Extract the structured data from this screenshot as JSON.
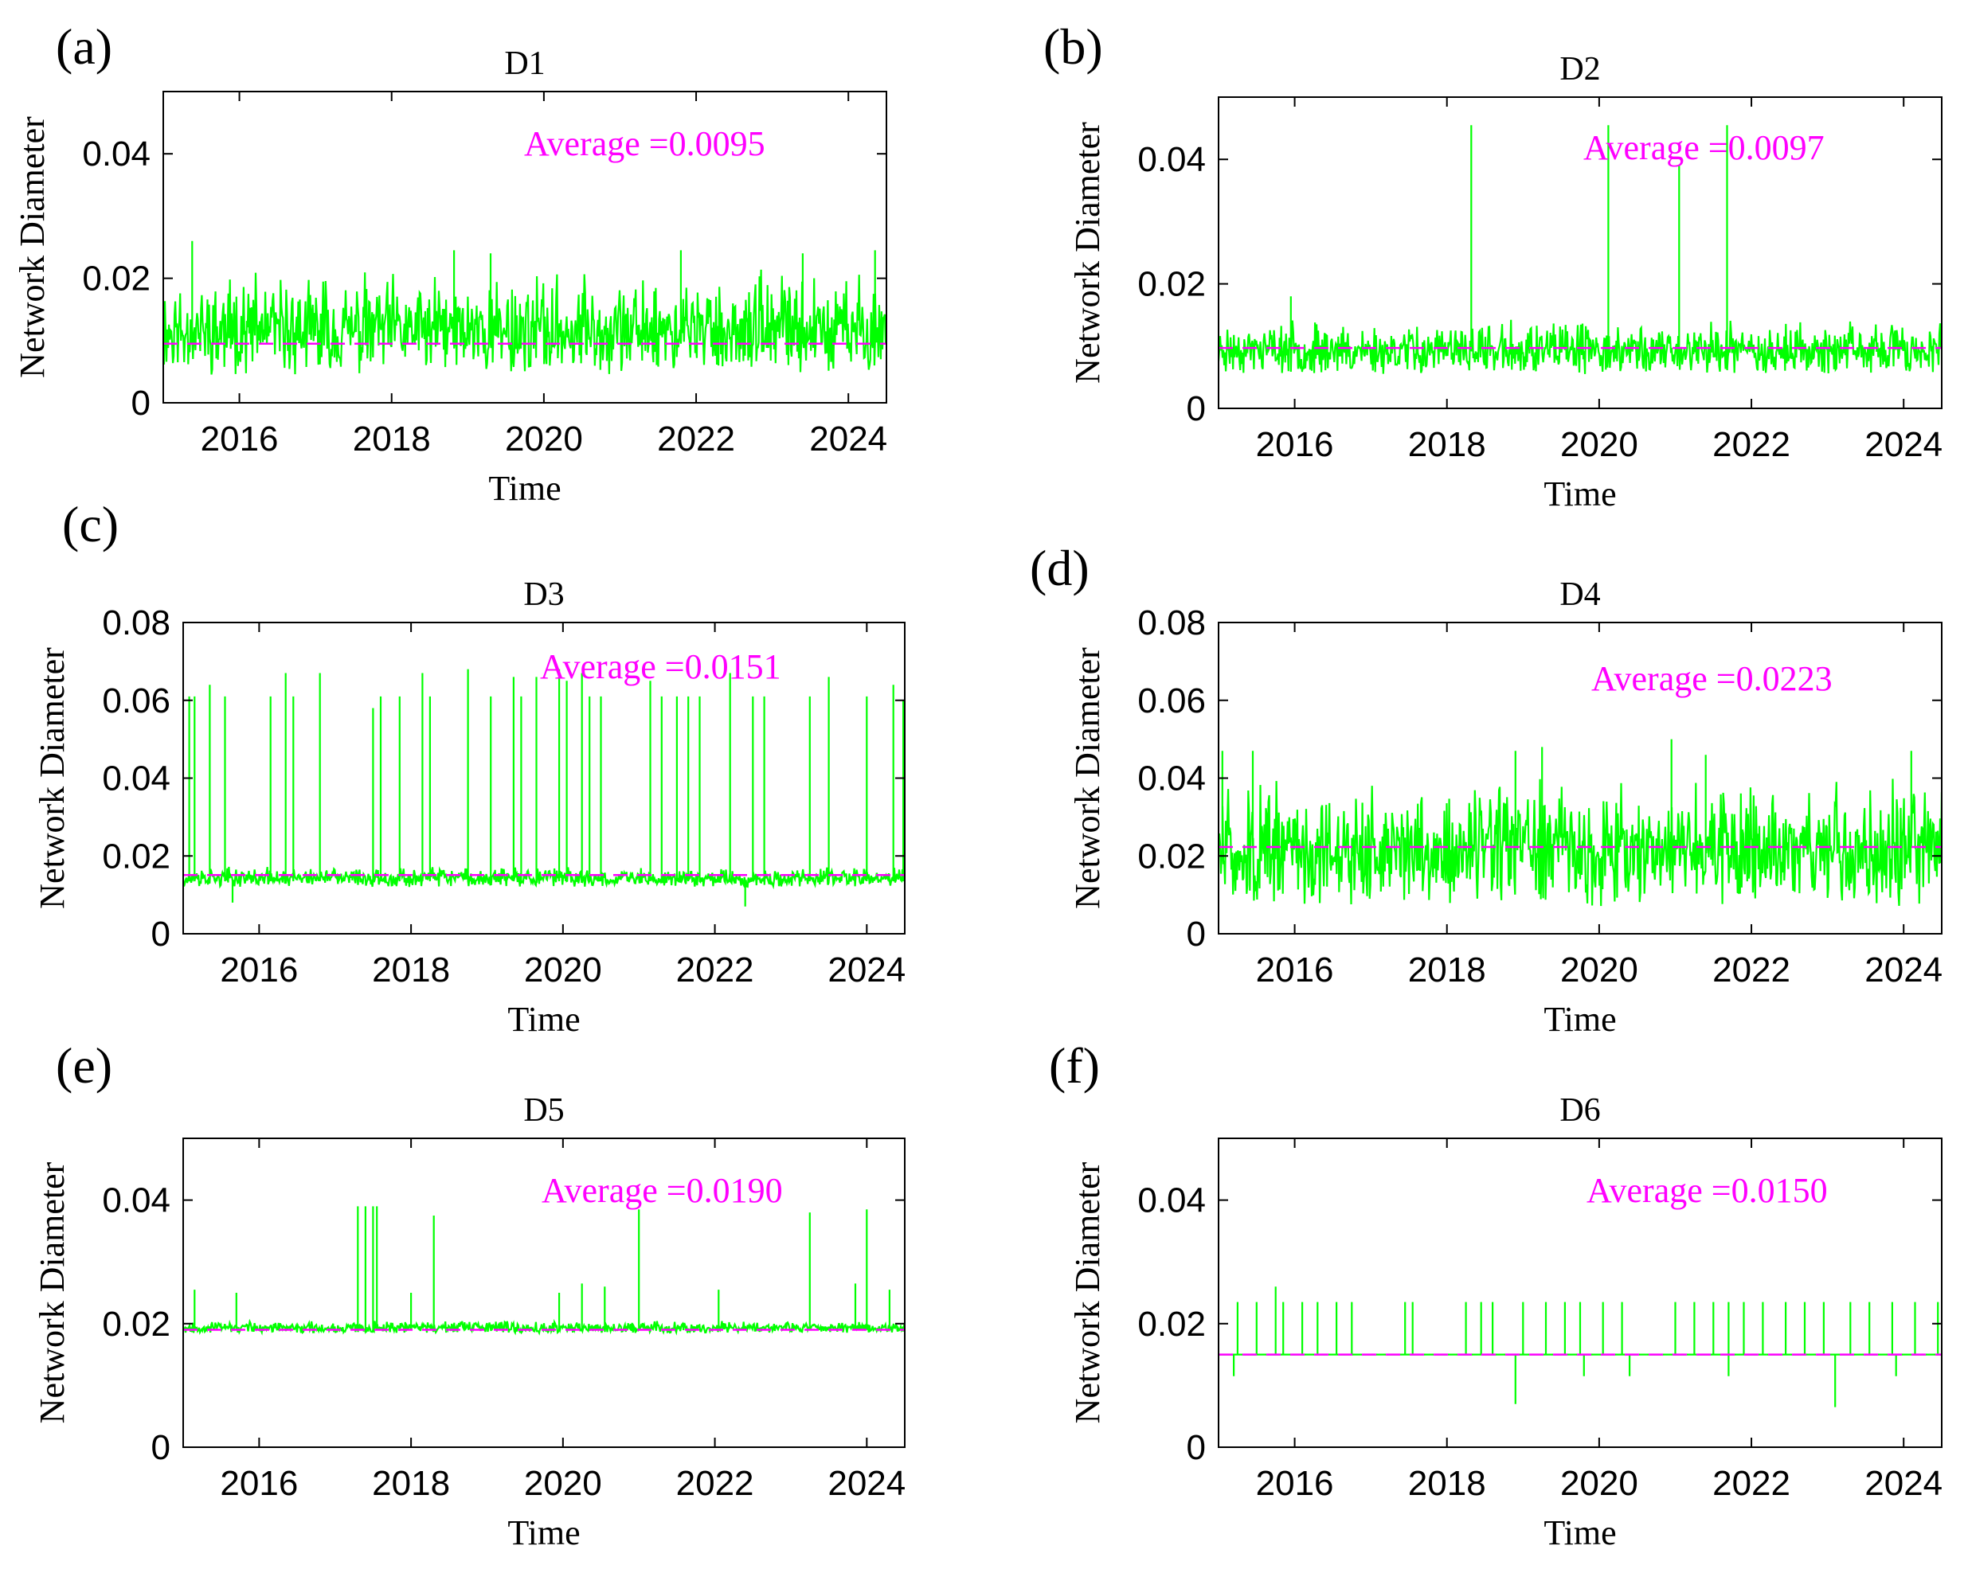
{
  "figure": {
    "series_color": "#00ff00",
    "average_color": "#ff00ff",
    "axis_color": "#000000"
  },
  "chart_data": [
    {
      "type": "line",
      "panel": "(a)",
      "title": "D1",
      "xlabel": "Time",
      "ylabel": "Network Diameter",
      "xlim": [
        2015.0,
        2024.5
      ],
      "ylim": [
        0,
        0.05
      ],
      "xticks": [
        2016,
        2018,
        2020,
        2022,
        2024
      ],
      "xtick_labels": [
        "2016",
        "2018",
        "2020",
        "2022",
        "2024"
      ],
      "yticks": [
        0,
        0.02,
        0.04
      ],
      "ytick_labels": [
        "0",
        "0.02",
        "0.04"
      ],
      "average": 0.0095,
      "average_label": "Average =0.0095",
      "noise": {
        "base": 0.0095,
        "lo": 0.0045,
        "hi": 0.0215,
        "seed": 11
      },
      "spikes": [
        [
          2015.38,
          0.026
        ],
        [
          2018.82,
          0.0245
        ],
        [
          2019.3,
          0.024
        ],
        [
          2021.8,
          0.0245
        ],
        [
          2023.4,
          0.024
        ],
        [
          2024.35,
          0.0245
        ]
      ]
    },
    {
      "type": "line",
      "panel": "(b)",
      "title": "D2",
      "xlabel": "Time",
      "ylabel": "Network Diameter",
      "xlim": [
        2015.0,
        2024.5
      ],
      "ylim": [
        0,
        0.05
      ],
      "xticks": [
        2016,
        2018,
        2020,
        2022,
        2024
      ],
      "xtick_labels": [
        "2016",
        "2018",
        "2020",
        "2022",
        "2024"
      ],
      "yticks": [
        0,
        0.02,
        0.04
      ],
      "ytick_labels": [
        "0",
        "0.02",
        "0.04"
      ],
      "average": 0.0097,
      "average_label": "Average =0.0097",
      "noise": {
        "base": 0.0097,
        "lo": 0.0055,
        "hi": 0.0145,
        "seed": 23
      },
      "spikes": [
        [
          2015.95,
          0.018
        ],
        [
          2018.32,
          0.0455
        ],
        [
          2020.12,
          0.0455
        ],
        [
          2021.05,
          0.039
        ],
        [
          2021.68,
          0.0455
        ]
      ]
    },
    {
      "type": "line",
      "panel": "(c)",
      "title": "D3",
      "xlabel": "Time",
      "ylabel": "Network Diameter",
      "xlim": [
        2015.0,
        2024.5
      ],
      "ylim": [
        0,
        0.08
      ],
      "xticks": [
        2016,
        2018,
        2020,
        2022,
        2024
      ],
      "xtick_labels": [
        "2016",
        "2018",
        "2020",
        "2022",
        "2024"
      ],
      "yticks": [
        0,
        0.02,
        0.04,
        0.06,
        0.08
      ],
      "ytick_labels": [
        "0",
        "0.02",
        "0.04",
        "0.06",
        "0.08"
      ],
      "average": 0.0151,
      "average_label": "Average =0.0151",
      "noise": {
        "base": 0.0135,
        "lo": 0.012,
        "hi": 0.0175,
        "seed": 37
      },
      "spikes": [
        [
          2015.08,
          0.061
        ],
        [
          2015.15,
          0.061
        ],
        [
          2015.35,
          0.064
        ],
        [
          2015.55,
          0.061
        ],
        [
          2016.15,
          0.061
        ],
        [
          2016.35,
          0.067
        ],
        [
          2016.45,
          0.061
        ],
        [
          2016.8,
          0.067
        ],
        [
          2017.5,
          0.058
        ],
        [
          2017.6,
          0.061
        ],
        [
          2017.85,
          0.061
        ],
        [
          2018.15,
          0.067
        ],
        [
          2018.25,
          0.061
        ],
        [
          2018.75,
          0.068
        ],
        [
          2019.05,
          0.061
        ],
        [
          2019.35,
          0.066
        ],
        [
          2019.45,
          0.061
        ],
        [
          2019.65,
          0.066
        ],
        [
          2019.95,
          0.068
        ],
        [
          2020.05,
          0.065
        ],
        [
          2020.25,
          0.067
        ],
        [
          2020.35,
          0.061
        ],
        [
          2020.5,
          0.061
        ],
        [
          2021.15,
          0.065
        ],
        [
          2021.3,
          0.061
        ],
        [
          2021.5,
          0.061
        ],
        [
          2021.65,
          0.061
        ],
        [
          2021.8,
          0.061
        ],
        [
          2022.2,
          0.067
        ],
        [
          2022.5,
          0.061
        ],
        [
          2022.65,
          0.061
        ],
        [
          2023.25,
          0.061
        ],
        [
          2023.5,
          0.066
        ],
        [
          2024.0,
          0.061
        ],
        [
          2024.35,
          0.064
        ],
        [
          2024.48,
          0.06
        ]
      ],
      "dips": [
        [
          2015.65,
          0.008
        ],
        [
          2022.4,
          0.007
        ]
      ]
    },
    {
      "type": "line",
      "panel": "(d)",
      "title": "D4",
      "xlabel": "Time",
      "ylabel": "Network Diameter",
      "xlim": [
        2015.0,
        2024.5
      ],
      "ylim": [
        0,
        0.08
      ],
      "xticks": [
        2016,
        2018,
        2020,
        2022,
        2024
      ],
      "xtick_labels": [
        "2016",
        "2018",
        "2020",
        "2022",
        "2024"
      ],
      "yticks": [
        0,
        0.02,
        0.04,
        0.06,
        0.08
      ],
      "ytick_labels": [
        "0",
        "0.02",
        "0.04",
        "0.06",
        "0.08"
      ],
      "average": 0.0223,
      "average_label": "Average =0.0223",
      "noise": {
        "base": 0.0223,
        "lo": 0.007,
        "hi": 0.041,
        "seed": 51
      },
      "spikes": [
        [
          2015.05,
          0.047
        ],
        [
          2015.45,
          0.047
        ],
        [
          2018.9,
          0.047
        ],
        [
          2019.25,
          0.048
        ],
        [
          2020.95,
          0.05
        ],
        [
          2021.4,
          0.046
        ],
        [
          2024.1,
          0.047
        ]
      ]
    },
    {
      "type": "line",
      "panel": "(e)",
      "title": "D5",
      "xlabel": "Time",
      "ylabel": "Network Diameter",
      "xlim": [
        2015.0,
        2024.5
      ],
      "ylim": [
        0,
        0.05
      ],
      "xticks": [
        2016,
        2018,
        2020,
        2022,
        2024
      ],
      "xtick_labels": [
        "2016",
        "2018",
        "2020",
        "2022",
        "2024"
      ],
      "yticks": [
        0,
        0.02,
        0.04
      ],
      "ytick_labels": [
        "0",
        "0.02",
        "0.04"
      ],
      "average": 0.019,
      "average_label": "Average =0.0190",
      "noise": {
        "base": 0.019,
        "lo": 0.0185,
        "hi": 0.0205,
        "seed": 67
      },
      "spikes": [
        [
          2015.15,
          0.0255
        ],
        [
          2015.7,
          0.025
        ],
        [
          2017.3,
          0.039
        ],
        [
          2017.4,
          0.039
        ],
        [
          2017.5,
          0.039
        ],
        [
          2017.55,
          0.039
        ],
        [
          2018.0,
          0.025
        ],
        [
          2018.3,
          0.0375
        ],
        [
          2019.95,
          0.025
        ],
        [
          2020.25,
          0.0265
        ],
        [
          2020.55,
          0.026
        ],
        [
          2021.0,
          0.0385
        ],
        [
          2022.05,
          0.0255
        ],
        [
          2023.25,
          0.038
        ],
        [
          2023.85,
          0.0265
        ],
        [
          2024.0,
          0.0385
        ],
        [
          2024.3,
          0.0255
        ]
      ]
    },
    {
      "type": "line",
      "panel": "(f)",
      "title": "D6",
      "xlabel": "Time",
      "ylabel": "Network Diameter",
      "xlim": [
        2015.0,
        2024.5
      ],
      "ylim": [
        0,
        0.05
      ],
      "xticks": [
        2016,
        2018,
        2020,
        2022,
        2024
      ],
      "xtick_labels": [
        "2016",
        "2018",
        "2020",
        "2022",
        "2024"
      ],
      "yticks": [
        0,
        0.02,
        0.04
      ],
      "ytick_labels": [
        "0",
        "0.02",
        "0.04"
      ],
      "average": 0.015,
      "average_label": "Average =0.0150",
      "noise": {
        "base": 0.015,
        "lo": 0.0148,
        "hi": 0.0152,
        "seed": 83
      },
      "spikes": [
        [
          2015.25,
          0.0235
        ],
        [
          2015.5,
          0.0235
        ],
        [
          2015.75,
          0.026
        ],
        [
          2015.85,
          0.0235
        ],
        [
          2016.1,
          0.0235
        ],
        [
          2016.3,
          0.0235
        ],
        [
          2016.55,
          0.0235
        ],
        [
          2016.75,
          0.0235
        ],
        [
          2017.45,
          0.0235
        ],
        [
          2017.55,
          0.0235
        ],
        [
          2018.25,
          0.0235
        ],
        [
          2018.45,
          0.0235
        ],
        [
          2018.6,
          0.0235
        ],
        [
          2019.0,
          0.0235
        ],
        [
          2019.3,
          0.0235
        ],
        [
          2019.55,
          0.0235
        ],
        [
          2019.75,
          0.0235
        ],
        [
          2020.05,
          0.0235
        ],
        [
          2020.3,
          0.0235
        ],
        [
          2021.0,
          0.0235
        ],
        [
          2021.25,
          0.0235
        ],
        [
          2021.5,
          0.0235
        ],
        [
          2021.7,
          0.0235
        ],
        [
          2021.9,
          0.0235
        ],
        [
          2022.15,
          0.0235
        ],
        [
          2022.45,
          0.0235
        ],
        [
          2022.7,
          0.0235
        ],
        [
          2022.95,
          0.0235
        ],
        [
          2023.3,
          0.0235
        ],
        [
          2023.55,
          0.0235
        ],
        [
          2023.85,
          0.0235
        ],
        [
          2024.15,
          0.0235
        ],
        [
          2024.45,
          0.0235
        ]
      ],
      "dips": [
        [
          2015.2,
          0.0115
        ],
        [
          2018.9,
          0.007
        ],
        [
          2019.8,
          0.0115
        ],
        [
          2020.4,
          0.0115
        ],
        [
          2021.7,
          0.0115
        ],
        [
          2023.1,
          0.0065
        ],
        [
          2023.9,
          0.0115
        ]
      ]
    }
  ]
}
